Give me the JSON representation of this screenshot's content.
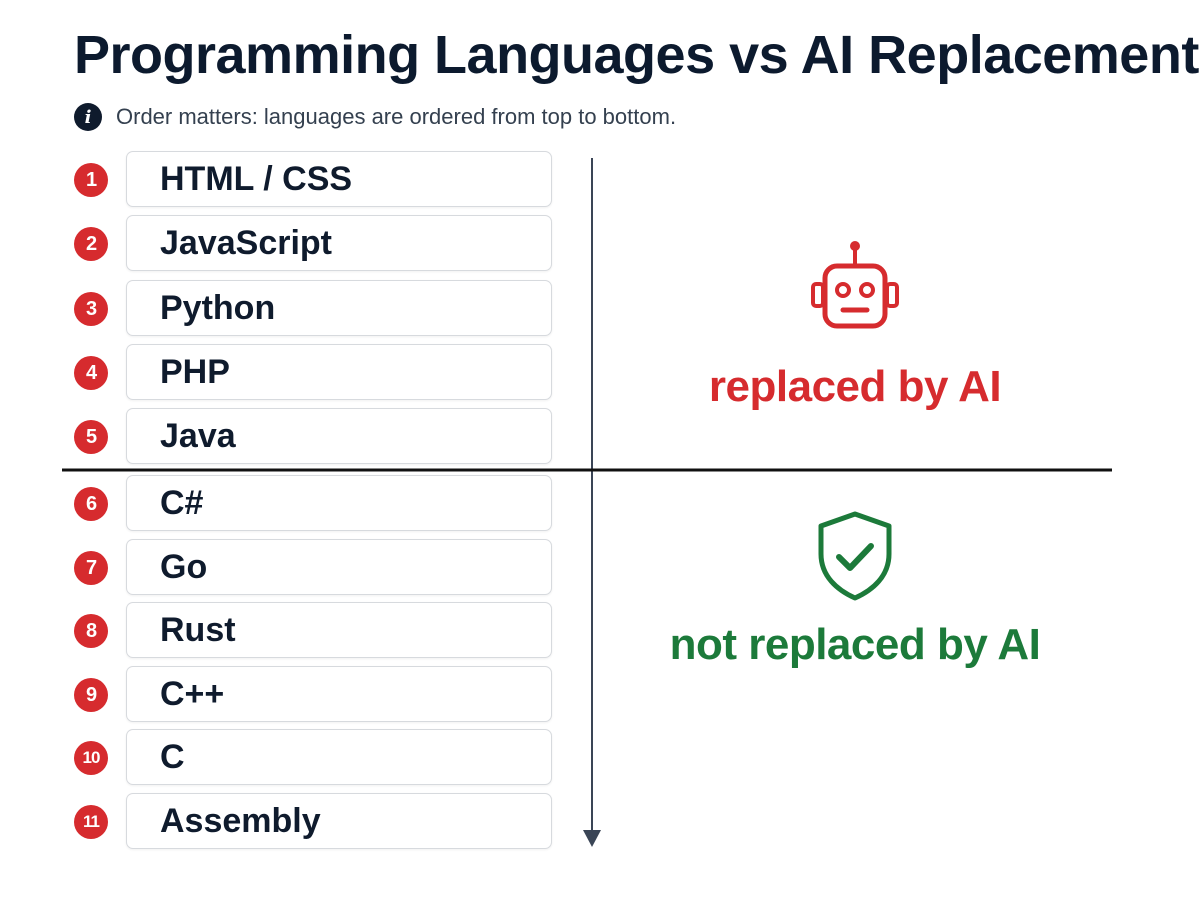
{
  "title": "Programming Languages vs AI Replacement",
  "note": {
    "icon": "info-icon",
    "text": "Order matters: languages are ordered from top to bottom."
  },
  "languages": [
    {
      "number": "1",
      "name": "HTML / CSS"
    },
    {
      "number": "2",
      "name": "JavaScript"
    },
    {
      "number": "3",
      "name": "Python"
    },
    {
      "number": "4",
      "name": "PHP"
    },
    {
      "number": "5",
      "name": "Java"
    },
    {
      "number": "6",
      "name": "C#"
    },
    {
      "number": "7",
      "name": "Go"
    },
    {
      "number": "8",
      "name": "Rust"
    },
    {
      "number": "9",
      "name": "C++"
    },
    {
      "number": "10",
      "name": "C"
    },
    {
      "number": "11",
      "name": "Assembly"
    }
  ],
  "divider_after_index": 5,
  "groups": {
    "replaced": {
      "label": "replaced by AI",
      "icon": "robot-icon",
      "color": "#d62b2e"
    },
    "not_replaced": {
      "label": "not replaced by AI",
      "icon": "shield-check-icon",
      "color": "#1c7a3a"
    }
  },
  "colors": {
    "badge": "#d62b2e",
    "text": "#0f1b2d",
    "axis": "#3a4556"
  }
}
